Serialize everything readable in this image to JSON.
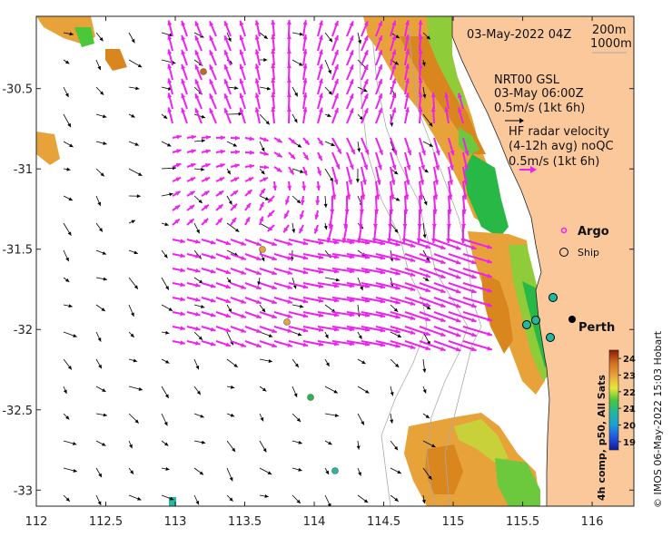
{
  "map": {
    "datetime": "03-May-2022 04Z",
    "isobath_200": "200m",
    "isobath_1000": "1000m",
    "model_label": "NRT00 GSL",
    "model_time": "03-May 06:00Z",
    "model_scale": "0.5m/s (1kt 6h)",
    "radar_label": "HF radar velocity",
    "radar_avg": "(4-12h avg) noQC",
    "radar_scale": "0.5m/s (1kt 6h)",
    "argo_label": "Argo",
    "ship_label": "Ship",
    "city_label": "Perth",
    "colorbar_title": "4h comp, p50, All Sats",
    "credit": "© IMOS 06-May-2022 15:03 Hobart",
    "colors": {
      "land": "#fac89a",
      "current_arrow": "#000000",
      "radar_arrow": "#ee22ee",
      "isobath": "#aaaaaa"
    },
    "x_ticks": [
      "112",
      "112.5",
      "113",
      "113.5",
      "114",
      "114.5",
      "115",
      "115.5",
      "116"
    ],
    "y_ticks": [
      "-30.5",
      "-31",
      "-31.5",
      "-32",
      "-32.5",
      "-33"
    ],
    "colorbar_ticks": [
      "24",
      "23",
      "22",
      "21",
      "20",
      "19"
    ],
    "lon_range": [
      112,
      116.3
    ],
    "lat_range": [
      -33.1,
      -30.05
    ],
    "sst_range": [
      18.5,
      24.5
    ]
  }
}
